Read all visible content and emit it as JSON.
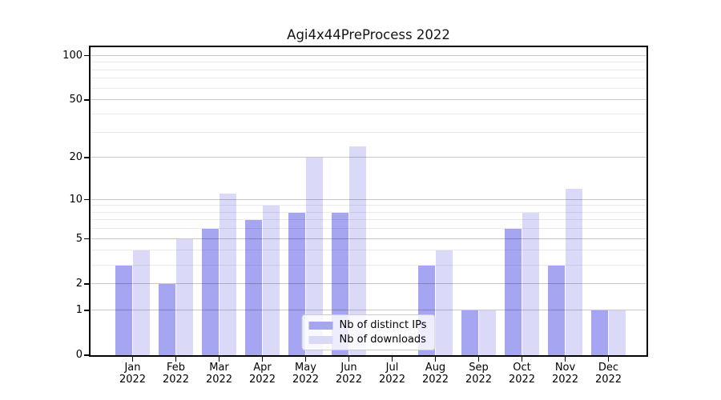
{
  "figure": {
    "title": "Agi4x44PreProcess 2022"
  },
  "chart_data": {
    "type": "bar",
    "title": "Agi4x44PreProcess 2022",
    "categories": [
      "Jan 2022",
      "Feb 2022",
      "Mar 2022",
      "Apr 2022",
      "May 2022",
      "Jun 2022",
      "Jul 2022",
      "Aug 2022",
      "Sep 2022",
      "Oct 2022",
      "Nov 2022",
      "Dec 2022"
    ],
    "series": [
      {
        "name": "Nb of distinct IPs",
        "color": "#a5a5f2",
        "values": [
          3,
          2,
          6,
          7,
          8,
          8,
          0,
          3,
          1,
          6,
          3,
          1
        ]
      },
      {
        "name": "Nb of downloads",
        "color": "#dadaf8",
        "values": [
          4,
          5,
          11,
          9,
          20,
          24,
          0,
          4,
          1,
          8,
          12,
          1
        ]
      }
    ],
    "xlabel": "",
    "ylabel": "",
    "yscale": "log1p",
    "ylim": [
      0,
      115
    ],
    "y_major_ticks": [
      0,
      1,
      2,
      5,
      10,
      20,
      50,
      100
    ],
    "y_minor_ticks": [
      3,
      4,
      6,
      7,
      8,
      9,
      30,
      40,
      60,
      70,
      80,
      90
    ],
    "grid": "horizontal",
    "legend_position": "lower center"
  }
}
